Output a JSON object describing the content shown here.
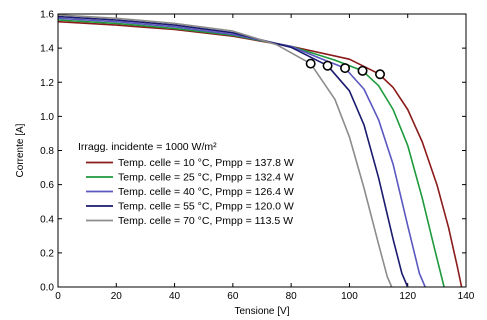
{
  "chart_data": {
    "type": "line",
    "xlabel": "Tensione [V]",
    "ylabel": "Corrente [A]",
    "xlim": [
      0,
      140
    ],
    "ylim": [
      0,
      1.6
    ],
    "x_ticks": [
      "0",
      "20",
      "40",
      "60",
      "80",
      "100",
      "120",
      "140"
    ],
    "y_ticks": [
      "0.0",
      "0.2",
      "0.4",
      "0.6",
      "0.8",
      "1.0",
      "1.2",
      "1.4",
      "1.6"
    ],
    "grid": false,
    "legend_placement": "lower-left",
    "legend_title": "Irragg. incidente = 1000 W/m²",
    "series": [
      {
        "name": "Temp. celle = 10 °C,  Pmpp = 137.8 W",
        "color": "#8b1a1a",
        "points": [
          [
            0,
            1.555
          ],
          [
            20,
            1.535
          ],
          [
            40,
            1.51
          ],
          [
            60,
            1.47
          ],
          [
            80,
            1.41
          ],
          [
            100,
            1.335
          ],
          [
            110,
            1.25
          ],
          [
            115,
            1.17
          ],
          [
            120,
            1.04
          ],
          [
            125,
            0.85
          ],
          [
            130,
            0.6
          ],
          [
            134,
            0.35
          ],
          [
            137,
            0.12
          ],
          [
            138.5,
            0
          ]
        ],
        "mpp": [
          110.5,
          1.247
        ]
      },
      {
        "name": "Temp. celle = 25 °C,  Pmpp = 132.4 W",
        "color": "#1e9a3c",
        "points": [
          [
            0,
            1.565
          ],
          [
            20,
            1.545
          ],
          [
            40,
            1.515
          ],
          [
            60,
            1.475
          ],
          [
            80,
            1.41
          ],
          [
            95,
            1.33
          ],
          [
            104.5,
            1.267
          ],
          [
            110,
            1.18
          ],
          [
            115,
            1.04
          ],
          [
            120,
            0.83
          ],
          [
            125,
            0.52
          ],
          [
            129,
            0.24
          ],
          [
            132.5,
            0
          ]
        ],
        "mpp": [
          104.5,
          1.267
        ]
      },
      {
        "name": "Temp. celle = 40 °C,  Pmpp = 126.4 W",
        "color": "#5a57c0",
        "points": [
          [
            0,
            1.575
          ],
          [
            20,
            1.555
          ],
          [
            40,
            1.525
          ],
          [
            60,
            1.48
          ],
          [
            80,
            1.41
          ],
          [
            90,
            1.34
          ],
          [
            98.5,
            1.283
          ],
          [
            105,
            1.16
          ],
          [
            110,
            0.98
          ],
          [
            115,
            0.72
          ],
          [
            120,
            0.36
          ],
          [
            124,
            0.08
          ],
          [
            126,
            0
          ]
        ],
        "mpp": [
          98.5,
          1.283
        ]
      },
      {
        "name": "Temp. celle = 55 °C,  Pmpp = 120.0 W",
        "color": "#1a1a6e",
        "points": [
          [
            0,
            1.585
          ],
          [
            20,
            1.565
          ],
          [
            40,
            1.535
          ],
          [
            60,
            1.49
          ],
          [
            80,
            1.405
          ],
          [
            92.5,
            1.297
          ],
          [
            100,
            1.15
          ],
          [
            105,
            0.95
          ],
          [
            110,
            0.64
          ],
          [
            115,
            0.28
          ],
          [
            118,
            0.08
          ],
          [
            120,
            0
          ]
        ],
        "mpp": [
          92.5,
          1.297
        ]
      },
      {
        "name": "Temp. celle = 70 °C,  Pmpp = 113.5 W",
        "color": "#8c8c8c",
        "points": [
          [
            0,
            1.595
          ],
          [
            20,
            1.575
          ],
          [
            40,
            1.545
          ],
          [
            60,
            1.5
          ],
          [
            75,
            1.42
          ],
          [
            86.7,
            1.309
          ],
          [
            95,
            1.1
          ],
          [
            100,
            0.88
          ],
          [
            105,
            0.58
          ],
          [
            110,
            0.25
          ],
          [
            113,
            0.06
          ],
          [
            114.5,
            0
          ]
        ],
        "mpp": [
          86.7,
          1.309
        ]
      }
    ]
  }
}
